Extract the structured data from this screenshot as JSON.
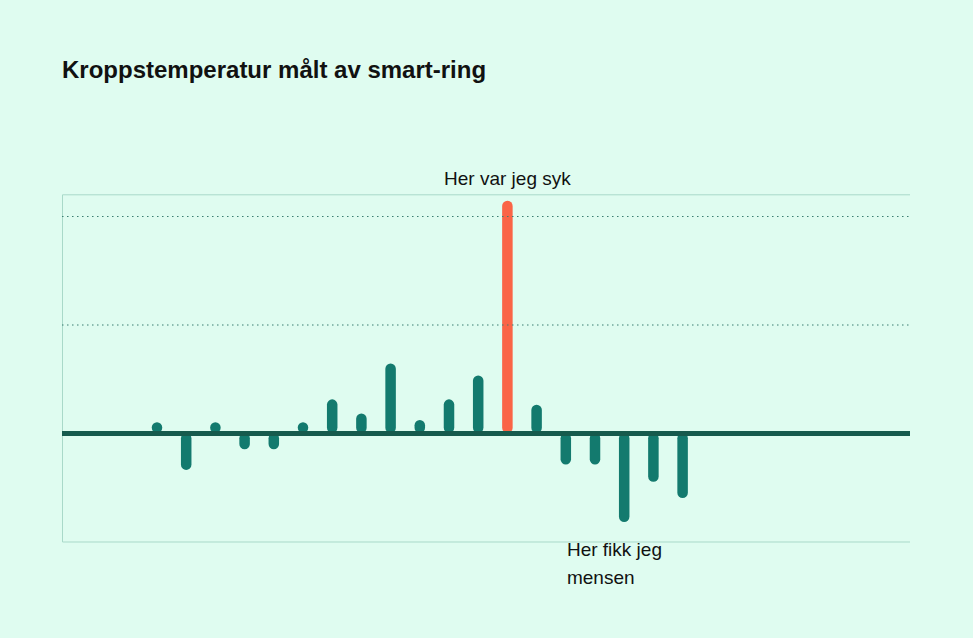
{
  "chart_data": {
    "type": "bar",
    "title": "Kroppstemperatur målt av smart-ring",
    "categories": [
      null,
      null,
      null,
      null,
      null,
      null,
      null,
      null,
      null,
      null,
      null,
      null,
      null,
      null,
      null,
      null,
      null,
      null,
      null
    ],
    "values": [
      0.1,
      -0.34,
      0.1,
      -0.15,
      -0.15,
      0.1,
      0.31,
      0.18,
      0.64,
      0.12,
      0.31,
      0.53,
      2.14,
      0.26,
      -0.29,
      -0.29,
      -0.82,
      -0.45,
      -0.6
    ],
    "colors": [
      "#137a6e",
      "#137a6e",
      "#137a6e",
      "#137a6e",
      "#137a6e",
      "#137a6e",
      "#137a6e",
      "#137a6e",
      "#137a6e",
      "#137a6e",
      "#137a6e",
      "#137a6e",
      "#fa6446",
      "#137a6e",
      "#137a6e",
      "#137a6e",
      "#137a6e",
      "#137a6e",
      "#137a6e"
    ],
    "ylim": [
      -1,
      2.2
    ],
    "yticks": [
      0,
      1,
      2
    ],
    "grid": true,
    "tick_labels": false,
    "annotations": [
      [
        "Her var jeg syk"
      ],
      [
        "Her fikk jeg",
        "mensen"
      ]
    ]
  }
}
